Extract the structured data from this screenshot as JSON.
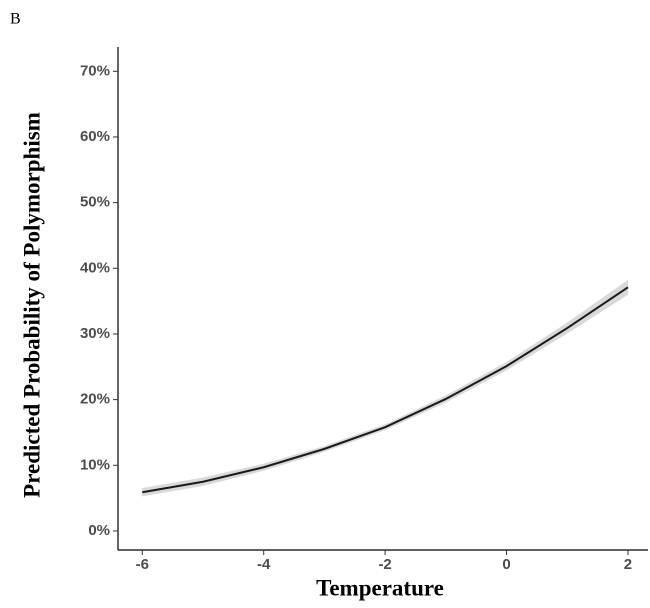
{
  "chart_data": {
    "type": "line",
    "panel_label": "B",
    "x_label": "Temperature",
    "y_label": "Predicted Probability of Polymorphism",
    "x": [
      -6,
      -5,
      -4,
      -3,
      -2,
      -1,
      0,
      1,
      2
    ],
    "values": [
      5.9,
      7.5,
      9.7,
      12.5,
      15.8,
      20.1,
      25.1,
      30.9,
      37.1
    ],
    "lower": [
      5.3,
      6.9,
      9.2,
      12.1,
      15.4,
      19.6,
      24.5,
      30.1,
      36.0
    ],
    "upper": [
      6.5,
      8.1,
      10.2,
      12.9,
      16.2,
      20.6,
      25.7,
      31.7,
      38.2
    ],
    "color": "#1a1a1a",
    "band_color": "#d9d9d9",
    "xlim": [
      -6.4,
      2.33
    ],
    "ylim": [
      -2.9,
      73.7
    ],
    "xticks": [
      -6,
      -4,
      -2,
      0,
      2
    ],
    "yticks": [
      {
        "value": 0,
        "label": "0%"
      },
      {
        "value": 10,
        "label": "10%"
      },
      {
        "value": 20,
        "label": "20%"
      },
      {
        "value": 30,
        "label": "30%"
      },
      {
        "value": 40,
        "label": "40%"
      },
      {
        "value": 50,
        "label": "50%"
      },
      {
        "value": 60,
        "label": "60%"
      },
      {
        "value": 70,
        "label": "70%"
      }
    ],
    "grid": false
  }
}
